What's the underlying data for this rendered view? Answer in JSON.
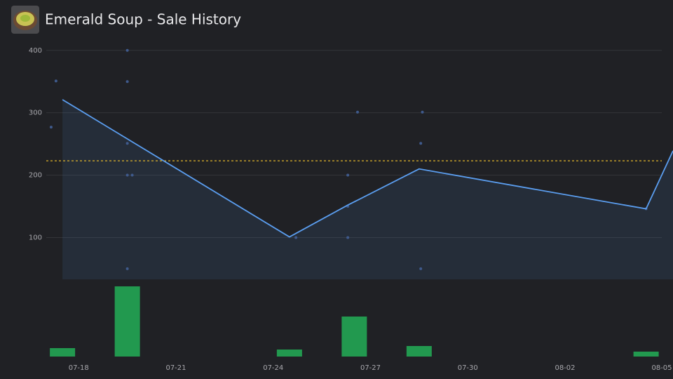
{
  "chart_data": {
    "type": "line",
    "title": "Emerald Soup - Sale History",
    "xlim": [
      17,
      36.33
    ],
    "xticks": [
      {
        "value": 18,
        "label": "07-18"
      },
      {
        "value": 21,
        "label": "07-21"
      },
      {
        "value": 24,
        "label": "07-24"
      },
      {
        "value": 27,
        "label": "07-27"
      },
      {
        "value": 30,
        "label": "07-30"
      },
      {
        "value": 33,
        "label": "08-02"
      },
      {
        "value": 36,
        "label": "08-05"
      }
    ],
    "ylim": [
      33,
      411
    ],
    "yticks": [
      100,
      200,
      300,
      400
    ],
    "grid": true,
    "price_line": {
      "color": "#5b9ef0",
      "x": [
        17.5,
        24.5,
        26.3,
        28.5,
        35.5,
        36.33
      ],
      "values": [
        321,
        101,
        152,
        210,
        146,
        239
      ]
    },
    "sales": {
      "color": "#3f5a8c",
      "x": [
        17.15,
        17.3,
        19.5,
        19.5,
        19.5,
        19.5,
        19.65,
        19.5,
        24.7,
        26.3,
        26.3,
        26.3,
        26.6,
        28.6,
        28.55,
        28.55,
        35.5
      ],
      "values": [
        277,
        351,
        400,
        350,
        251,
        200,
        200,
        50,
        100,
        200,
        150,
        100,
        301,
        301,
        251,
        50,
        146
      ]
    },
    "average": {
      "color": "#e0b52a",
      "value": 223
    },
    "volume": {
      "color": "#22994f",
      "ylim": [
        0,
        100
      ],
      "x": [
        17.5,
        19.5,
        24.5,
        26.5,
        28.5,
        35.5
      ],
      "values": [
        12,
        100,
        10,
        57,
        15,
        7
      ]
    }
  }
}
